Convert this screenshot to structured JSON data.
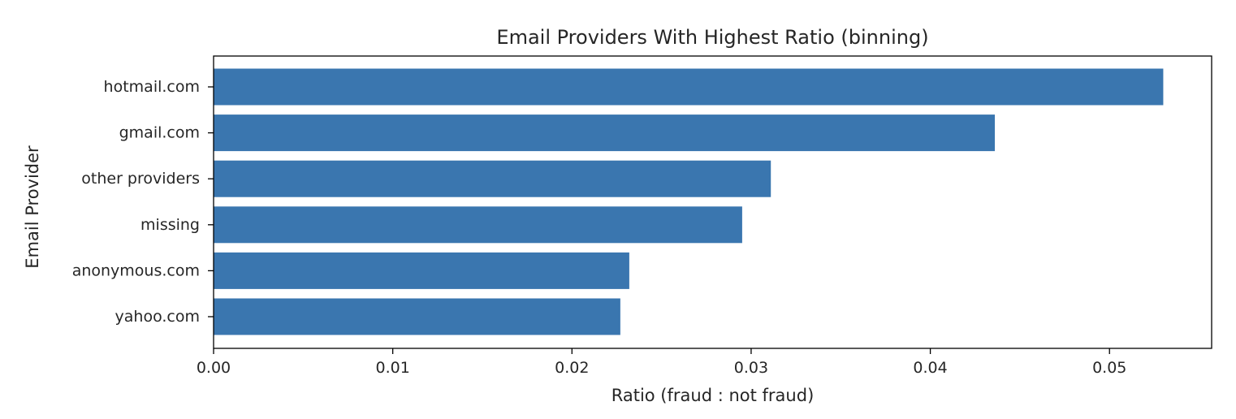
{
  "chart_data": {
    "type": "bar",
    "orientation": "horizontal",
    "title": "Email Providers With Highest Ratio (binning)",
    "xlabel": "Ratio (fraud : not fraud)",
    "ylabel": "Email Provider",
    "categories": [
      "hotmail.com",
      "gmail.com",
      "other providers",
      "missing",
      "anonymous.com",
      "yahoo.com"
    ],
    "values": [
      0.053,
      0.0436,
      0.0311,
      0.0295,
      0.0232,
      0.0227
    ],
    "xlim": [
      0,
      0.0557
    ],
    "xticks": [
      0.0,
      0.01,
      0.02,
      0.03,
      0.04,
      0.05
    ],
    "xtick_labels": [
      "0.00",
      "0.01",
      "0.02",
      "0.03",
      "0.04",
      "0.05"
    ],
    "grid": false,
    "bar_color": "#3a76af"
  }
}
